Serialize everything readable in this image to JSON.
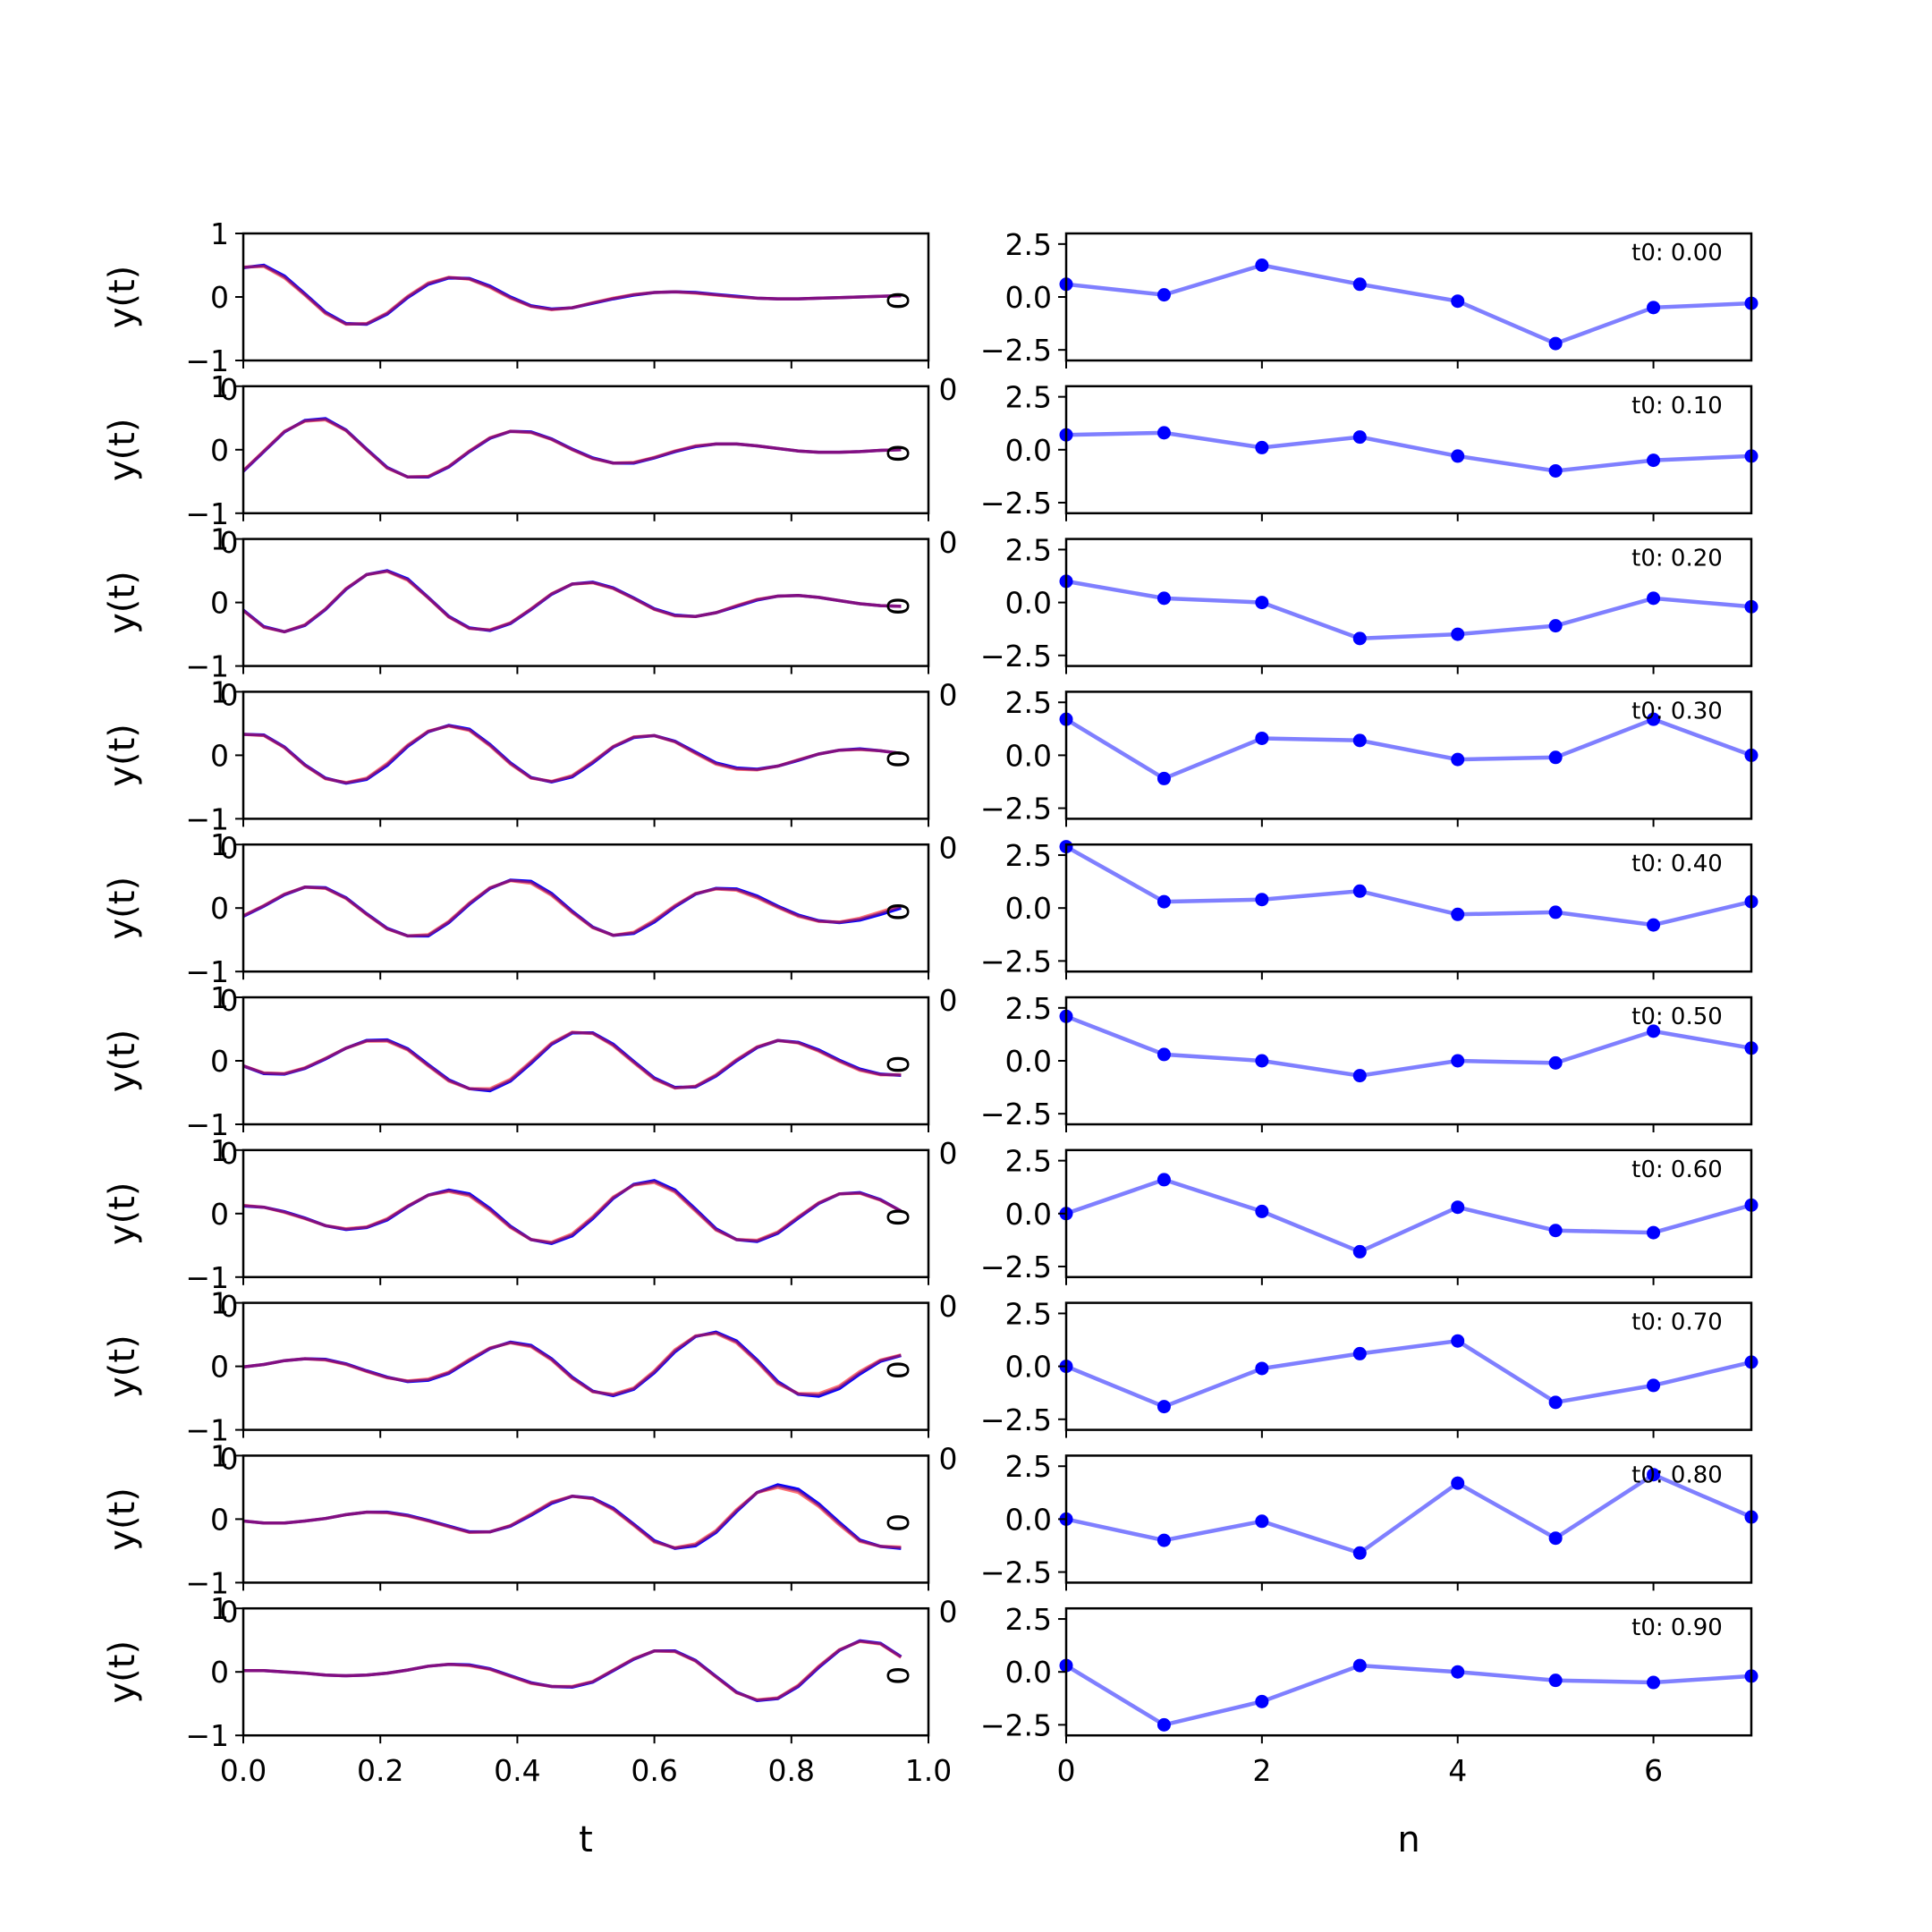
{
  "chart_data": [
    {
      "type": "line",
      "panel": "left-column",
      "x": [
        0.0,
        0.03,
        0.06,
        0.09,
        0.12,
        0.15,
        0.18,
        0.21,
        0.24,
        0.27,
        0.3,
        0.33,
        0.36,
        0.39,
        0.42,
        0.45,
        0.48,
        0.51,
        0.54,
        0.57,
        0.6,
        0.63,
        0.66,
        0.69,
        0.72,
        0.75,
        0.78,
        0.81,
        0.84,
        0.87,
        0.9,
        0.93,
        0.96
      ],
      "xlim": [
        0,
        1
      ],
      "ylim": [
        -1,
        1
      ],
      "xlabel": "t",
      "ylabel": "y(t)",
      "xticks": [
        "0.0",
        "0.2",
        "0.4",
        "0.6",
        "0.8",
        "1.0"
      ],
      "xtick_values": [
        0,
        0.2,
        0.4,
        0.6,
        0.8,
        1.0
      ],
      "yticks": [
        "−1",
        "0",
        "1"
      ],
      "ytick_values": [
        -1,
        0,
        1
      ],
      "stray_label": "0",
      "colors": {
        "series_a": "#0000ff",
        "series_b": "#ff0000",
        "overlap": "#7a1a8a"
      },
      "rows": [
        {
          "series_a": [
            0.46,
            0.5,
            0.33,
            0.05,
            -0.24,
            -0.42,
            -0.43,
            -0.27,
            -0.01,
            0.2,
            0.3,
            0.29,
            0.17,
            0.0,
            -0.14,
            -0.19,
            -0.17,
            -0.1,
            -0.03,
            0.03,
            0.07,
            0.08,
            0.07,
            0.04,
            0.01,
            -0.02,
            -0.03,
            -0.03,
            -0.02,
            -0.01,
            0.0,
            0.01,
            0.02
          ],
          "series_b": [
            0.47,
            0.48,
            0.3,
            0.03,
            -0.26,
            -0.43,
            -0.42,
            -0.25,
            0.01,
            0.22,
            0.31,
            0.28,
            0.15,
            -0.02,
            -0.15,
            -0.2,
            -0.17,
            -0.09,
            -0.02,
            0.04,
            0.07,
            0.08,
            0.06,
            0.03,
            0.0,
            -0.02,
            -0.03,
            -0.03,
            -0.02,
            -0.01,
            0.0,
            0.01,
            0.02
          ]
        },
        {
          "series_a": [
            -0.34,
            -0.03,
            0.28,
            0.46,
            0.49,
            0.31,
            0.01,
            -0.28,
            -0.43,
            -0.43,
            -0.27,
            -0.03,
            0.18,
            0.29,
            0.28,
            0.17,
            0.01,
            -0.13,
            -0.21,
            -0.21,
            -0.13,
            -0.03,
            0.05,
            0.09,
            0.09,
            0.06,
            0.02,
            -0.02,
            -0.04,
            -0.04,
            -0.03,
            -0.01,
            0.0
          ],
          "series_b": [
            -0.33,
            -0.02,
            0.29,
            0.45,
            0.47,
            0.3,
            0.0,
            -0.29,
            -0.43,
            -0.42,
            -0.26,
            -0.02,
            0.19,
            0.29,
            0.27,
            0.16,
            0.0,
            -0.14,
            -0.21,
            -0.2,
            -0.12,
            -0.02,
            0.06,
            0.09,
            0.09,
            0.06,
            0.02,
            -0.02,
            -0.04,
            -0.04,
            -0.03,
            -0.01,
            0.0
          ]
        },
        {
          "series_a": [
            -0.12,
            -0.38,
            -0.46,
            -0.36,
            -0.11,
            0.21,
            0.44,
            0.5,
            0.37,
            0.08,
            -0.22,
            -0.4,
            -0.44,
            -0.33,
            -0.11,
            0.13,
            0.29,
            0.32,
            0.23,
            0.07,
            -0.1,
            -0.2,
            -0.22,
            -0.16,
            -0.06,
            0.04,
            0.1,
            0.11,
            0.08,
            0.03,
            -0.02,
            -0.05,
            -0.06
          ],
          "series_b": [
            -0.13,
            -0.39,
            -0.46,
            -0.35,
            -0.1,
            0.22,
            0.44,
            0.49,
            0.35,
            0.07,
            -0.23,
            -0.41,
            -0.43,
            -0.32,
            -0.1,
            0.14,
            0.29,
            0.31,
            0.22,
            0.06,
            -0.11,
            -0.21,
            -0.22,
            -0.16,
            -0.05,
            0.05,
            0.1,
            0.11,
            0.08,
            0.03,
            -0.02,
            -0.05,
            -0.06
          ]
        },
        {
          "series_a": [
            0.33,
            0.32,
            0.13,
            -0.15,
            -0.36,
            -0.44,
            -0.38,
            -0.16,
            0.14,
            0.37,
            0.47,
            0.41,
            0.17,
            -0.12,
            -0.35,
            -0.42,
            -0.34,
            -0.12,
            0.13,
            0.28,
            0.31,
            0.22,
            0.05,
            -0.12,
            -0.2,
            -0.22,
            -0.17,
            -0.08,
            0.02,
            0.08,
            0.1,
            0.07,
            0.03
          ],
          "series_b": [
            0.33,
            0.31,
            0.12,
            -0.16,
            -0.37,
            -0.43,
            -0.36,
            -0.13,
            0.16,
            0.38,
            0.46,
            0.39,
            0.15,
            -0.14,
            -0.36,
            -0.41,
            -0.32,
            -0.1,
            0.14,
            0.29,
            0.31,
            0.21,
            0.03,
            -0.14,
            -0.22,
            -0.23,
            -0.17,
            -0.07,
            0.02,
            0.08,
            0.09,
            0.07,
            0.03
          ]
        },
        {
          "series_a": [
            -0.13,
            0.03,
            0.21,
            0.33,
            0.32,
            0.16,
            -0.09,
            -0.32,
            -0.44,
            -0.44,
            -0.23,
            0.06,
            0.31,
            0.44,
            0.42,
            0.23,
            -0.05,
            -0.3,
            -0.43,
            -0.4,
            -0.22,
            0.02,
            0.22,
            0.31,
            0.3,
            0.19,
            0.03,
            -0.11,
            -0.2,
            -0.23,
            -0.19,
            -0.1,
            0.0
          ],
          "series_b": [
            -0.12,
            0.04,
            0.22,
            0.33,
            0.31,
            0.15,
            -0.1,
            -0.33,
            -0.44,
            -0.42,
            -0.21,
            0.08,
            0.32,
            0.43,
            0.39,
            0.2,
            -0.07,
            -0.31,
            -0.43,
            -0.38,
            -0.19,
            0.04,
            0.23,
            0.3,
            0.28,
            0.16,
            0.01,
            -0.13,
            -0.21,
            -0.22,
            -0.16,
            -0.06,
            0.04
          ]
        },
        {
          "series_a": [
            -0.08,
            -0.2,
            -0.21,
            -0.12,
            0.03,
            0.2,
            0.32,
            0.33,
            0.19,
            -0.06,
            -0.3,
            -0.44,
            -0.47,
            -0.32,
            -0.04,
            0.26,
            0.44,
            0.44,
            0.26,
            -0.01,
            -0.27,
            -0.42,
            -0.41,
            -0.24,
            0.0,
            0.21,
            0.32,
            0.29,
            0.17,
            0.01,
            -0.13,
            -0.21,
            -0.23
          ],
          "series_b": [
            -0.08,
            -0.19,
            -0.2,
            -0.11,
            0.04,
            0.2,
            0.31,
            0.31,
            0.17,
            -0.08,
            -0.32,
            -0.44,
            -0.44,
            -0.29,
            -0.01,
            0.28,
            0.45,
            0.43,
            0.24,
            -0.03,
            -0.29,
            -0.43,
            -0.4,
            -0.22,
            0.02,
            0.22,
            0.32,
            0.28,
            0.15,
            -0.01,
            -0.15,
            -0.22,
            -0.22
          ]
        },
        {
          "series_a": [
            0.12,
            0.1,
            0.03,
            -0.07,
            -0.19,
            -0.25,
            -0.22,
            -0.1,
            0.11,
            0.29,
            0.37,
            0.31,
            0.08,
            -0.2,
            -0.41,
            -0.47,
            -0.35,
            -0.08,
            0.24,
            0.46,
            0.52,
            0.37,
            0.07,
            -0.24,
            -0.41,
            -0.44,
            -0.31,
            -0.07,
            0.16,
            0.31,
            0.33,
            0.22,
            0.04
          ],
          "series_b": [
            0.13,
            0.1,
            0.02,
            -0.08,
            -0.19,
            -0.24,
            -0.21,
            -0.08,
            0.12,
            0.29,
            0.35,
            0.28,
            0.05,
            -0.22,
            -0.41,
            -0.45,
            -0.32,
            -0.05,
            0.26,
            0.45,
            0.49,
            0.34,
            0.04,
            -0.26,
            -0.41,
            -0.42,
            -0.29,
            -0.05,
            0.17,
            0.31,
            0.32,
            0.21,
            0.04
          ]
        },
        {
          "series_a": [
            -0.01,
            0.03,
            0.09,
            0.12,
            0.11,
            0.04,
            -0.07,
            -0.17,
            -0.24,
            -0.22,
            -0.11,
            0.09,
            0.28,
            0.38,
            0.33,
            0.12,
            -0.17,
            -0.39,
            -0.46,
            -0.36,
            -0.1,
            0.23,
            0.47,
            0.54,
            0.4,
            0.1,
            -0.24,
            -0.44,
            -0.47,
            -0.35,
            -0.12,
            0.08,
            0.17
          ],
          "series_b": [
            -0.01,
            0.03,
            0.09,
            0.12,
            0.1,
            0.03,
            -0.08,
            -0.18,
            -0.23,
            -0.2,
            -0.09,
            0.11,
            0.29,
            0.37,
            0.31,
            0.1,
            -0.19,
            -0.4,
            -0.44,
            -0.34,
            -0.07,
            0.26,
            0.48,
            0.52,
            0.37,
            0.07,
            -0.27,
            -0.43,
            -0.43,
            -0.31,
            -0.08,
            0.1,
            0.18
          ]
        },
        {
          "series_a": [
            -0.03,
            -0.06,
            -0.06,
            -0.03,
            0.01,
            0.07,
            0.11,
            0.11,
            0.06,
            -0.02,
            -0.11,
            -0.2,
            -0.2,
            -0.11,
            0.06,
            0.25,
            0.36,
            0.33,
            0.17,
            -0.08,
            -0.34,
            -0.46,
            -0.42,
            -0.21,
            0.12,
            0.42,
            0.54,
            0.47,
            0.24,
            -0.05,
            -0.33,
            -0.43,
            -0.46
          ],
          "series_b": [
            -0.03,
            -0.06,
            -0.06,
            -0.03,
            0.01,
            0.07,
            0.11,
            0.1,
            0.05,
            -0.03,
            -0.12,
            -0.21,
            -0.2,
            -0.1,
            0.08,
            0.27,
            0.36,
            0.32,
            0.15,
            -0.1,
            -0.36,
            -0.45,
            -0.39,
            -0.18,
            0.15,
            0.42,
            0.5,
            0.42,
            0.2,
            -0.09,
            -0.35,
            -0.43,
            -0.44
          ]
        },
        {
          "series_a": [
            0.02,
            0.02,
            0.0,
            -0.02,
            -0.05,
            -0.06,
            -0.05,
            -0.02,
            0.03,
            0.09,
            0.12,
            0.11,
            0.05,
            -0.06,
            -0.17,
            -0.23,
            -0.24,
            -0.16,
            0.02,
            0.2,
            0.33,
            0.33,
            0.18,
            -0.07,
            -0.32,
            -0.45,
            -0.42,
            -0.23,
            0.07,
            0.34,
            0.49,
            0.45,
            0.24
          ],
          "series_b": [
            0.02,
            0.02,
            0.0,
            -0.02,
            -0.05,
            -0.06,
            -0.05,
            -0.02,
            0.03,
            0.09,
            0.12,
            0.1,
            0.04,
            -0.07,
            -0.18,
            -0.23,
            -0.23,
            -0.15,
            0.03,
            0.21,
            0.33,
            0.32,
            0.17,
            -0.08,
            -0.33,
            -0.44,
            -0.41,
            -0.21,
            0.09,
            0.35,
            0.48,
            0.44,
            0.23
          ]
        }
      ]
    },
    {
      "type": "line",
      "panel": "right-column",
      "x": [
        0,
        1,
        2,
        3,
        4,
        5,
        6,
        7
      ],
      "xlim": [
        0,
        7
      ],
      "ylim": [
        -3,
        3
      ],
      "xlabel": "n",
      "xticks": [
        "0",
        "2",
        "4",
        "6"
      ],
      "xtick_values": [
        0,
        2,
        4,
        6
      ],
      "yticks": [
        "−2.5",
        "0.0",
        "2.5"
      ],
      "ytick_values": [
        -2.5,
        0,
        2.5
      ],
      "stray_label": "0",
      "colors": {
        "line": "#0000ff",
        "line_alpha": 0.5,
        "marker": "#0000ff"
      },
      "rows": [
        {
          "label": "t0: 0.00",
          "values": [
            0.6,
            0.1,
            1.5,
            0.6,
            -0.2,
            -2.2,
            -0.5,
            -0.3
          ]
        },
        {
          "label": "t0: 0.10",
          "values": [
            0.7,
            0.8,
            0.1,
            0.6,
            -0.3,
            -1.0,
            -0.5,
            -0.3
          ]
        },
        {
          "label": "t0: 0.20",
          "values": [
            1.0,
            0.2,
            0.0,
            -1.7,
            -1.5,
            -1.1,
            0.2,
            -0.2
          ]
        },
        {
          "label": "t0: 0.30",
          "values": [
            1.7,
            -1.1,
            0.8,
            0.7,
            -0.2,
            -0.1,
            1.7,
            0.0
          ]
        },
        {
          "label": "t0: 0.40",
          "values": [
            2.9,
            0.3,
            0.4,
            0.8,
            -0.3,
            -0.2,
            -0.8,
            0.3
          ]
        },
        {
          "label": "t0: 0.50",
          "values": [
            2.1,
            0.3,
            0.0,
            -0.7,
            0.0,
            -0.1,
            1.4,
            0.6
          ]
        },
        {
          "label": "t0: 0.60",
          "values": [
            0.0,
            1.6,
            0.1,
            -1.8,
            0.3,
            -0.8,
            -0.9,
            0.4
          ]
        },
        {
          "label": "t0: 0.70",
          "values": [
            0.0,
            -1.9,
            -0.1,
            0.6,
            1.2,
            -1.7,
            -0.9,
            0.2
          ]
        },
        {
          "label": "t0: 0.80",
          "values": [
            0.0,
            -1.0,
            -0.1,
            -1.6,
            1.7,
            -0.9,
            2.1,
            0.1
          ]
        },
        {
          "label": "t0: 0.90",
          "values": [
            0.3,
            -2.5,
            -1.4,
            0.3,
            0.0,
            -0.4,
            -0.5,
            -0.2
          ]
        }
      ]
    }
  ]
}
